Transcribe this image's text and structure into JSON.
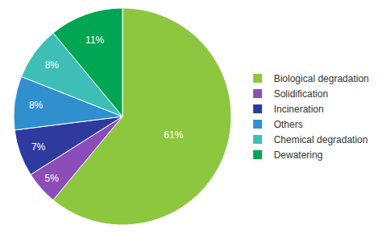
{
  "chart_data": {
    "type": "pie",
    "categories": [
      "Biological degradation",
      "Solidification",
      "Incineration",
      "Others",
      "Chemical degradation",
      "Dewatering"
    ],
    "values": [
      61,
      5,
      7,
      8,
      8,
      11
    ],
    "value_labels": [
      "61%",
      "5%",
      "7%",
      "8%",
      "8%",
      "11%"
    ],
    "colors": [
      "#8dc63f",
      "#8b4db8",
      "#2e3a9e",
      "#2f8fcf",
      "#3dbfb8",
      "#00a651"
    ],
    "data_labels": true,
    "legend": "right"
  }
}
